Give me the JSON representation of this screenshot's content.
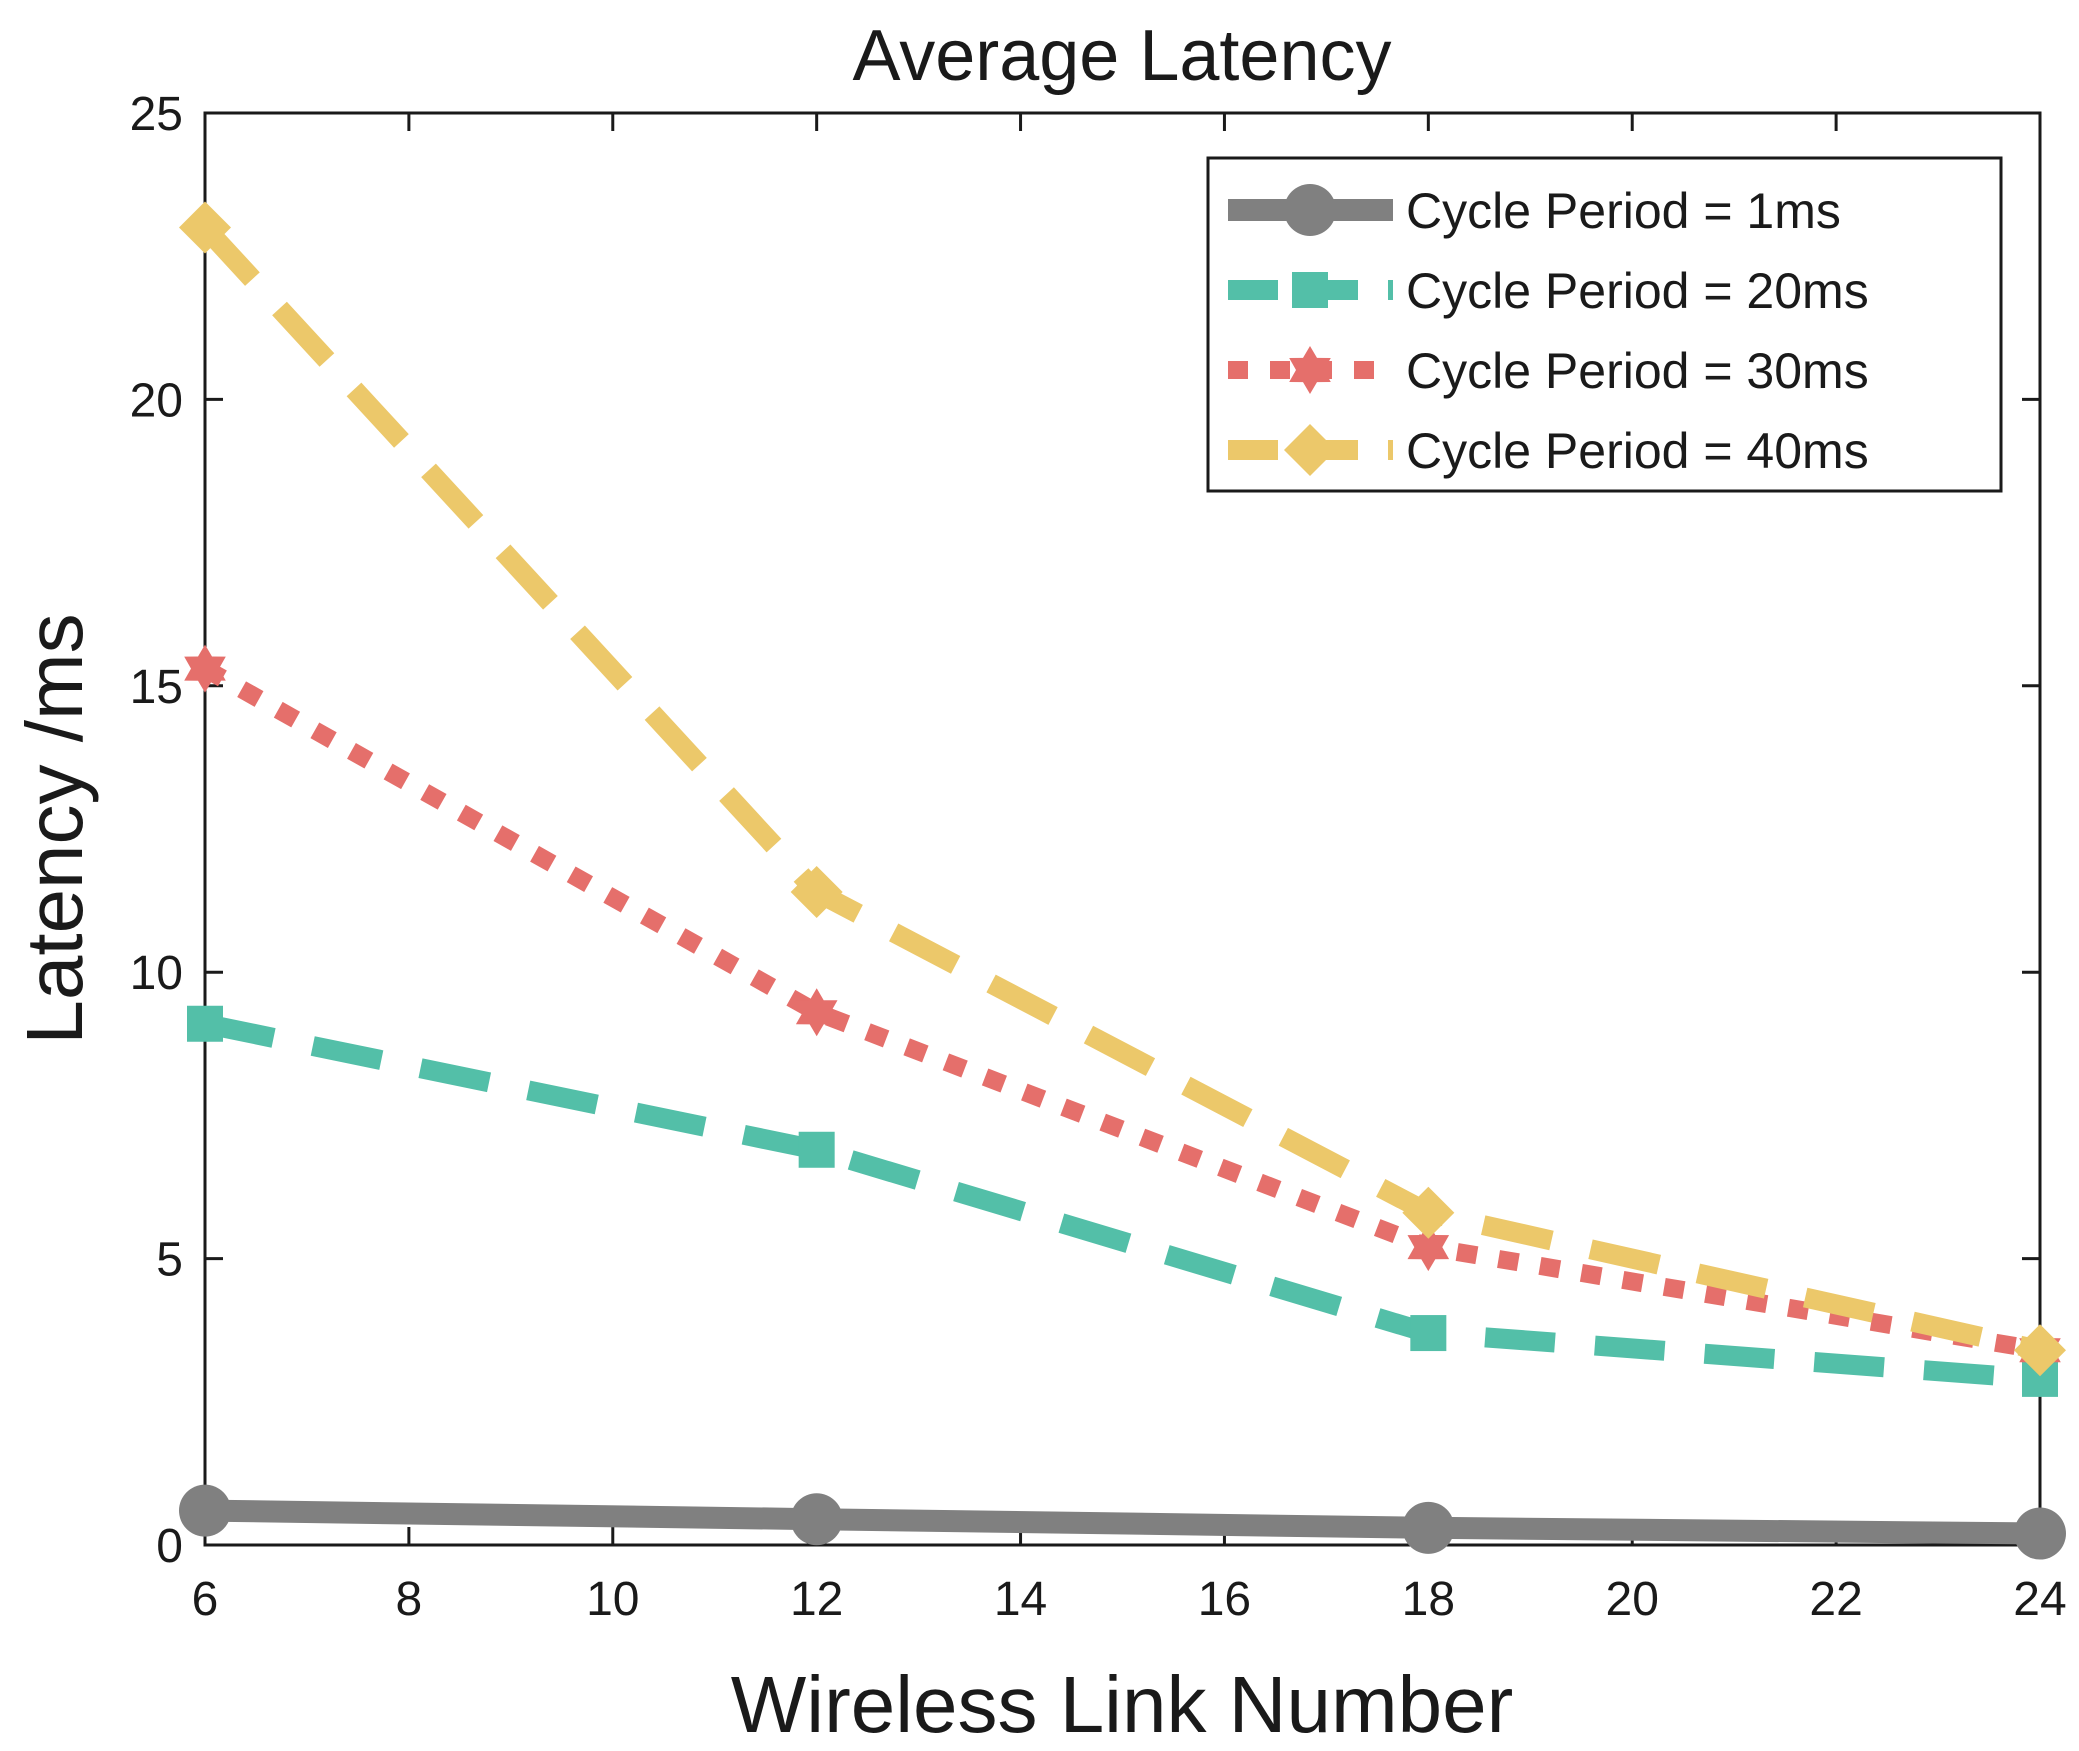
{
  "chart_data": {
    "type": "line",
    "title": "Average Latency",
    "xlabel": "Wireless Link Number",
    "ylabel": "Latency /ms",
    "xlim": [
      6,
      24
    ],
    "ylim": [
      0,
      25
    ],
    "xticks": [
      6,
      8,
      10,
      12,
      14,
      16,
      18,
      20,
      22,
      24
    ],
    "yticks": [
      0,
      5,
      10,
      15,
      20,
      25
    ],
    "grid": false,
    "legend_position": "top-right",
    "x": [
      6,
      12,
      18,
      24
    ],
    "series": [
      {
        "name": "Cycle Period = 1ms",
        "values": [
          0.6,
          0.45,
          0.3,
          0.2
        ],
        "color": "#808080",
        "line_style": "solid",
        "marker": "circle"
      },
      {
        "name": "Cycle Period = 20ms",
        "values": [
          9.1,
          6.9,
          3.7,
          2.9
        ],
        "color": "#53bfa8",
        "line_style": "dashed",
        "marker": "square"
      },
      {
        "name": "Cycle Period = 30ms",
        "values": [
          15.3,
          9.3,
          5.2,
          3.4
        ],
        "color": "#e56f6b",
        "line_style": "dotted",
        "marker": "hexagram"
      },
      {
        "name": "Cycle Period = 40ms",
        "values": [
          23.0,
          11.4,
          5.8,
          3.4
        ],
        "color": "#ecc86a",
        "line_style": "dashed",
        "marker": "diamond"
      }
    ]
  }
}
